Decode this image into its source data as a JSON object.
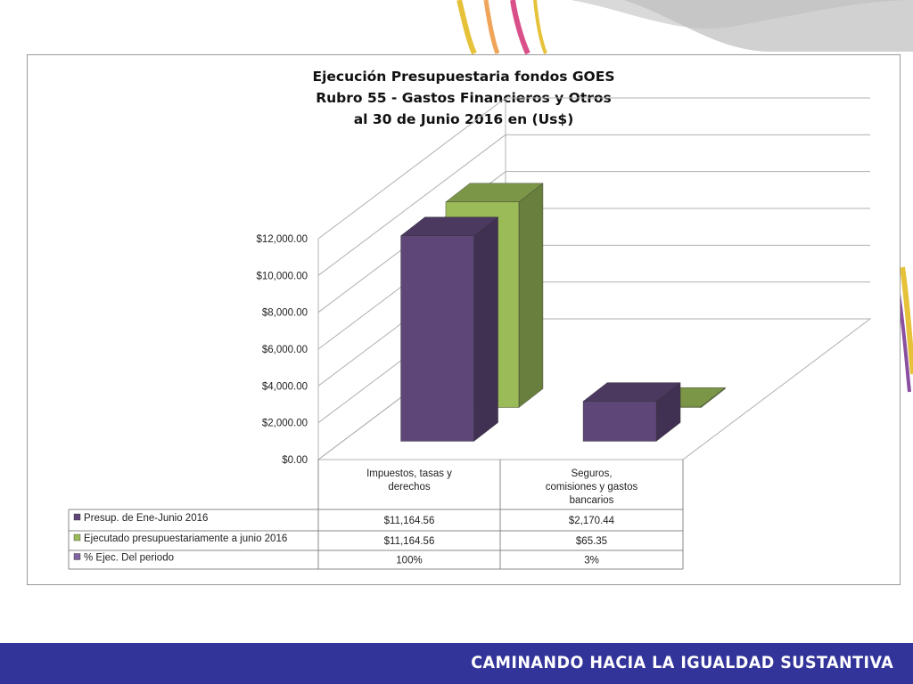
{
  "chart_data": {
    "type": "bar",
    "title": [
      "Ejecución Presupuestaria fondos GOES",
      "Rubro 55 - Gastos Financieros y Otros",
      "al 30 de Junio 2016 en (Us$)"
    ],
    "categories": [
      "Impuestos, tasas y derechos",
      "Seguros, comisiones y gastos bancarios"
    ],
    "category_lines": [
      [
        "Impuestos, tasas y",
        "derechos"
      ],
      [
        "Seguros,",
        "comisiones y gastos",
        "bancarios"
      ]
    ],
    "series": [
      {
        "name": "Presup. de Ene-Junio 2016",
        "values": [
          11164.56,
          2170.44
        ],
        "color": "#5e4778",
        "table": [
          "$11,164.56",
          "$2,170.44"
        ]
      },
      {
        "name": "Ejecutado presupuestariamente a junio 2016",
        "values": [
          11164.56,
          65.35
        ],
        "color": "#9bbb59",
        "table": [
          "$11,164.56",
          "$65.35"
        ]
      },
      {
        "name": "% Ejec. Del periodo",
        "values": [
          1.0,
          0.03
        ],
        "color": "#8064a2",
        "table": [
          "100%",
          "3%"
        ]
      }
    ],
    "yticks": [
      "$0.00",
      "$2,000.00",
      "$4,000.00",
      "$6,000.00",
      "$8,000.00",
      "$10,000.00",
      "$12,000.00"
    ],
    "ylim": [
      0,
      12000
    ],
    "grid": true,
    "chart_style": "3d-column",
    "legend": "data-table"
  },
  "footer": {
    "text": "CAMINANDO HACIA LA IGUALDAD SUSTANTIVA"
  }
}
